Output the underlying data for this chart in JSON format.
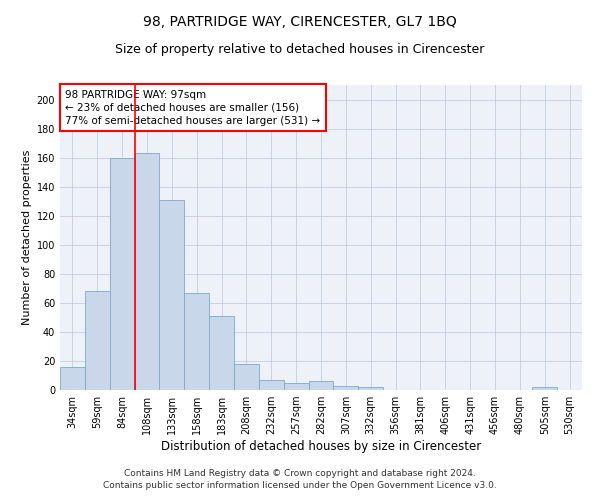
{
  "title": "98, PARTRIDGE WAY, CIRENCESTER, GL7 1BQ",
  "subtitle": "Size of property relative to detached houses in Cirencester",
  "xlabel": "Distribution of detached houses by size in Cirencester",
  "ylabel": "Number of detached properties",
  "categories": [
    "34sqm",
    "59sqm",
    "84sqm",
    "108sqm",
    "133sqm",
    "158sqm",
    "183sqm",
    "208sqm",
    "232sqm",
    "257sqm",
    "282sqm",
    "307sqm",
    "332sqm",
    "356sqm",
    "381sqm",
    "406sqm",
    "431sqm",
    "456sqm",
    "480sqm",
    "505sqm",
    "530sqm"
  ],
  "values": [
    16,
    68,
    160,
    163,
    131,
    67,
    51,
    18,
    7,
    5,
    6,
    3,
    2,
    0,
    0,
    0,
    0,
    0,
    0,
    2,
    0
  ],
  "bar_color": "#c8d8ea",
  "bar_edge_color": "#7aaac8",
  "annotation_text": "98 PARTRIDGE WAY: 97sqm\n← 23% of detached houses are smaller (156)\n77% of semi-detached houses are larger (531) →",
  "annotation_box_color": "white",
  "annotation_box_edge": "red",
  "ylim": [
    0,
    210
  ],
  "yticks": [
    0,
    20,
    40,
    60,
    80,
    100,
    120,
    140,
    160,
    180,
    200
  ],
  "footer_line1": "Contains HM Land Registry data © Crown copyright and database right 2024.",
  "footer_line2": "Contains public sector information licensed under the Open Government Licence v3.0.",
  "background_color": "#eef2f8",
  "grid_color": "#b8c8dc",
  "title_fontsize": 10,
  "subtitle_fontsize": 9,
  "tick_fontsize": 7,
  "ylabel_fontsize": 8,
  "xlabel_fontsize": 8.5,
  "footer_fontsize": 6.5,
  "ann_fontsize": 7.5
}
